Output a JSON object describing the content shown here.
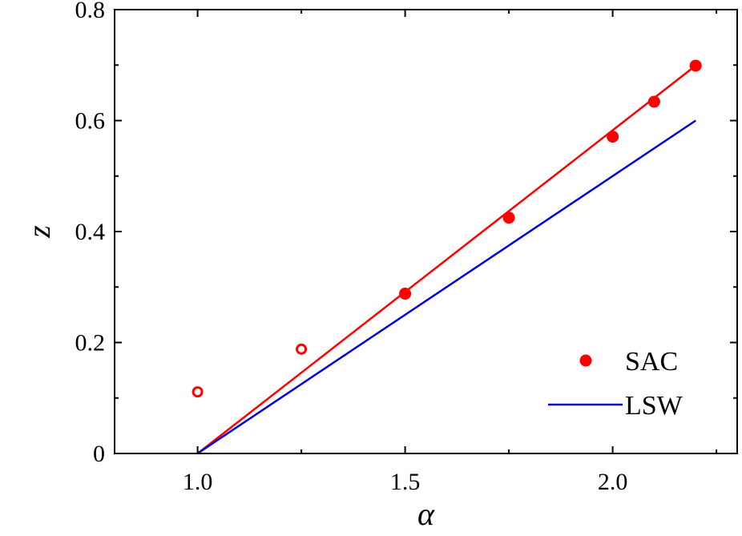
{
  "chart_data": {
    "type": "scatter",
    "xlabel": "α",
    "ylabel": "z",
    "xlim": [
      0.8,
      2.3
    ],
    "ylim": [
      0,
      0.8
    ],
    "x_ticks": [
      {
        "value": 1.0,
        "label": "1.0"
      },
      {
        "value": 1.5,
        "label": "1.5"
      },
      {
        "value": 2.0,
        "label": "2.0"
      }
    ],
    "y_ticks": [
      {
        "value": 0,
        "label": "0"
      },
      {
        "value": 0.2,
        "label": "0.2"
      },
      {
        "value": 0.4,
        "label": "0.4"
      },
      {
        "value": 0.6,
        "label": "0.6"
      },
      {
        "value": 0.8,
        "label": "0.8"
      }
    ],
    "series": [
      {
        "name": "SAC",
        "kind": "points",
        "color": "#ff0000",
        "points": [
          {
            "x": 1.5,
            "y": 0.288
          },
          {
            "x": 1.75,
            "y": 0.425
          },
          {
            "x": 2.0,
            "y": 0.571
          },
          {
            "x": 2.1,
            "y": 0.634
          },
          {
            "x": 2.2,
            "y": 0.699
          }
        ]
      },
      {
        "kind": "hollow-points",
        "color": "#ff0000",
        "points": [
          {
            "x": 1.0,
            "y": 0.111
          },
          {
            "x": 1.25,
            "y": 0.188
          }
        ]
      },
      {
        "kind": "line",
        "color": "#ff0000",
        "points": [
          {
            "x": 1.0,
            "y": 0.0
          },
          {
            "x": 2.2,
            "y": 0.699
          }
        ]
      },
      {
        "name": "LSW",
        "kind": "line",
        "color": "#0000dd",
        "points": [
          {
            "x": 1.0,
            "y": 0.0
          },
          {
            "x": 2.2,
            "y": 0.6
          }
        ]
      }
    ],
    "legend": {
      "position": "bottom-right",
      "entries": [
        {
          "label": "SAC",
          "marker": "dot",
          "color": "#ff0000"
        },
        {
          "label": "LSW",
          "marker": "line",
          "color": "#0000dd"
        }
      ]
    },
    "grid": false
  }
}
